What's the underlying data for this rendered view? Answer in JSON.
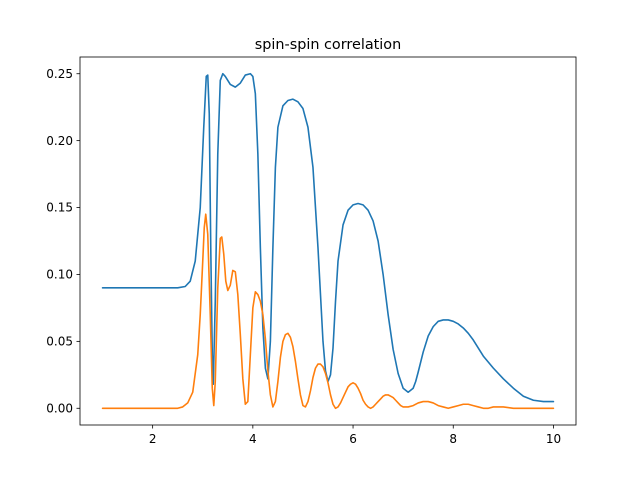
{
  "chart_data": {
    "type": "line",
    "title": "spin-spin correlation",
    "xlabel": "",
    "ylabel": "",
    "xlim": [
      0.55,
      10.45
    ],
    "ylim": [
      -0.0125,
      0.2625
    ],
    "xticks": [
      2,
      4,
      6,
      8,
      10
    ],
    "xtick_labels": [
      "2",
      "4",
      "6",
      "8",
      "10"
    ],
    "yticks": [
      0.0,
      0.05,
      0.1,
      0.15,
      0.2,
      0.25
    ],
    "ytick_labels": [
      "0.00",
      "0.05",
      "0.10",
      "0.15",
      "0.20",
      "0.25"
    ],
    "grid": false,
    "legend": "none",
    "series": [
      {
        "color": "#1f77b4",
        "x": [
          1.0,
          2.0,
          2.5,
          2.65,
          2.75,
          2.85,
          2.95,
          3.02,
          3.07,
          3.1,
          3.13,
          3.16,
          3.19,
          3.21,
          3.25,
          3.3,
          3.35,
          3.4,
          3.45,
          3.55,
          3.65,
          3.75,
          3.85,
          3.95,
          4.0,
          4.05,
          4.1,
          4.15,
          4.2,
          4.25,
          4.3,
          4.35,
          4.4,
          4.45,
          4.5,
          4.6,
          4.7,
          4.8,
          4.9,
          5.0,
          5.1,
          5.2,
          5.3,
          5.4,
          5.45,
          5.5,
          5.55,
          5.6,
          5.65,
          5.7,
          5.8,
          5.9,
          6.0,
          6.1,
          6.2,
          6.3,
          6.4,
          6.5,
          6.6,
          6.7,
          6.8,
          6.9,
          7.0,
          7.1,
          7.2,
          7.25,
          7.3,
          7.4,
          7.5,
          7.6,
          7.7,
          7.8,
          7.9,
          8.0,
          8.1,
          8.2,
          8.3,
          8.4,
          8.5,
          8.6,
          8.8,
          9.0,
          9.2,
          9.4,
          9.6,
          9.8,
          10.0
        ],
        "y": [
          0.09,
          0.09,
          0.09,
          0.091,
          0.095,
          0.11,
          0.15,
          0.21,
          0.248,
          0.249,
          0.22,
          0.12,
          0.04,
          0.018,
          0.08,
          0.19,
          0.245,
          0.25,
          0.248,
          0.242,
          0.24,
          0.243,
          0.249,
          0.25,
          0.248,
          0.235,
          0.19,
          0.12,
          0.06,
          0.03,
          0.022,
          0.05,
          0.12,
          0.18,
          0.21,
          0.226,
          0.23,
          0.231,
          0.229,
          0.224,
          0.21,
          0.18,
          0.12,
          0.05,
          0.028,
          0.02,
          0.025,
          0.045,
          0.08,
          0.11,
          0.137,
          0.148,
          0.152,
          0.153,
          0.152,
          0.148,
          0.14,
          0.125,
          0.1,
          0.07,
          0.044,
          0.026,
          0.015,
          0.012,
          0.015,
          0.02,
          0.027,
          0.042,
          0.054,
          0.061,
          0.065,
          0.066,
          0.066,
          0.065,
          0.063,
          0.06,
          0.056,
          0.051,
          0.045,
          0.039,
          0.03,
          0.022,
          0.015,
          0.009,
          0.006,
          0.005,
          0.005
        ]
      },
      {
        "color": "#ff7f0e",
        "x": [
          1.0,
          2.0,
          2.5,
          2.6,
          2.7,
          2.8,
          2.9,
          2.95,
          3.0,
          3.03,
          3.06,
          3.1,
          3.15,
          3.19,
          3.22,
          3.25,
          3.3,
          3.35,
          3.38,
          3.42,
          3.46,
          3.5,
          3.55,
          3.6,
          3.65,
          3.7,
          3.75,
          3.8,
          3.85,
          3.9,
          3.95,
          4.0,
          4.05,
          4.1,
          4.15,
          4.2,
          4.25,
          4.3,
          4.35,
          4.4,
          4.45,
          4.5,
          4.55,
          4.6,
          4.65,
          4.7,
          4.75,
          4.8,
          4.85,
          4.9,
          4.95,
          5.0,
          5.05,
          5.1,
          5.15,
          5.2,
          5.25,
          5.3,
          5.35,
          5.4,
          5.45,
          5.5,
          5.55,
          5.6,
          5.65,
          5.7,
          5.75,
          5.8,
          5.85,
          5.9,
          5.95,
          6.0,
          6.05,
          6.1,
          6.15,
          6.2,
          6.25,
          6.3,
          6.35,
          6.4,
          6.45,
          6.5,
          6.55,
          6.6,
          6.65,
          6.7,
          6.75,
          6.8,
          6.85,
          6.9,
          6.95,
          7.0,
          7.1,
          7.2,
          7.3,
          7.4,
          7.5,
          7.6,
          7.7,
          7.8,
          7.9,
          8.0,
          8.1,
          8.2,
          8.3,
          8.4,
          8.5,
          8.6,
          8.7,
          8.8,
          8.9,
          9.0,
          9.2,
          9.4,
          9.6,
          9.8,
          10.0
        ],
        "y": [
          0.0,
          0.0,
          0.0,
          0.001,
          0.004,
          0.012,
          0.04,
          0.07,
          0.11,
          0.135,
          0.145,
          0.13,
          0.07,
          0.015,
          0.002,
          0.02,
          0.09,
          0.127,
          0.128,
          0.115,
          0.095,
          0.088,
          0.092,
          0.103,
          0.102,
          0.085,
          0.055,
          0.022,
          0.003,
          0.005,
          0.04,
          0.075,
          0.087,
          0.085,
          0.08,
          0.07,
          0.052,
          0.028,
          0.01,
          0.001,
          0.005,
          0.02,
          0.038,
          0.05,
          0.055,
          0.056,
          0.053,
          0.046,
          0.035,
          0.022,
          0.01,
          0.002,
          0.001,
          0.005,
          0.013,
          0.023,
          0.03,
          0.033,
          0.033,
          0.031,
          0.026,
          0.019,
          0.01,
          0.003,
          0.0,
          0.001,
          0.004,
          0.008,
          0.012,
          0.016,
          0.018,
          0.019,
          0.018,
          0.015,
          0.011,
          0.006,
          0.003,
          0.001,
          0.0,
          0.001,
          0.003,
          0.005,
          0.007,
          0.009,
          0.01,
          0.01,
          0.009,
          0.008,
          0.006,
          0.004,
          0.002,
          0.001,
          0.001,
          0.002,
          0.004,
          0.005,
          0.005,
          0.004,
          0.002,
          0.001,
          0.0,
          0.001,
          0.002,
          0.003,
          0.003,
          0.002,
          0.001,
          0.0,
          0.0,
          0.001,
          0.001,
          0.001,
          0.0,
          0.0,
          0.0,
          0.0,
          0.0
        ]
      }
    ]
  }
}
